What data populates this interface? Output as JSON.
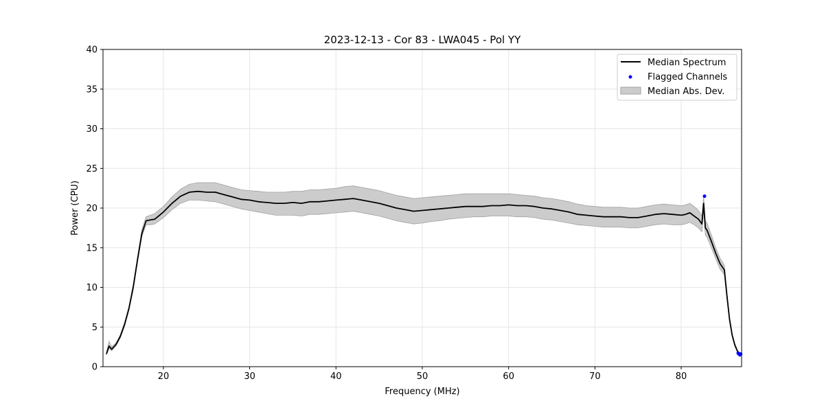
{
  "chart_data": {
    "type": "line",
    "title": "2023-12-13 - Cor 83 - LWA045 - Pol YY",
    "xlabel": "Frequency (MHz)",
    "ylabel": "Power (CPU)",
    "xlim": [
      13,
      87
    ],
    "ylim": [
      0,
      40
    ],
    "xticks": [
      20,
      30,
      40,
      50,
      60,
      70,
      80
    ],
    "yticks": [
      0,
      5,
      10,
      15,
      20,
      25,
      30,
      35,
      40
    ],
    "grid": true,
    "legend_position": "top-right",
    "series": [
      {
        "name": "Median Spectrum",
        "kind": "line",
        "color": "#000000",
        "x": [
          13.4,
          13.7,
          14.0,
          14.5,
          15.0,
          15.5,
          16.0,
          16.5,
          17.0,
          17.5,
          18.0,
          18.5,
          19.0,
          20.0,
          21.0,
          22.0,
          23.0,
          24.0,
          25.0,
          26.0,
          27.0,
          28.0,
          29.0,
          30.0,
          31.0,
          32.0,
          33.0,
          34.0,
          35.0,
          36.0,
          37.0,
          38.0,
          39.0,
          40.0,
          41.0,
          42.0,
          43.0,
          44.0,
          45.0,
          46.0,
          47.0,
          48.0,
          49.0,
          50.0,
          51.0,
          52.0,
          53.0,
          54.0,
          55.0,
          56.0,
          57.0,
          58.0,
          59.0,
          60.0,
          61.0,
          62.0,
          63.0,
          64.0,
          65.0,
          66.0,
          67.0,
          68.0,
          69.0,
          70.0,
          71.0,
          72.0,
          73.0,
          74.0,
          75.0,
          76.0,
          77.0,
          78.0,
          79.0,
          80.0,
          80.5,
          81.0,
          81.5,
          82.0,
          82.4,
          82.6,
          82.8,
          83.0,
          83.5,
          84.0,
          84.5,
          85.0,
          85.3,
          85.6,
          85.9,
          86.2,
          86.5,
          86.8
        ],
        "y": [
          1.6,
          2.6,
          2.2,
          2.8,
          3.8,
          5.3,
          7.3,
          10.0,
          13.5,
          16.8,
          18.4,
          18.5,
          18.6,
          19.5,
          20.6,
          21.5,
          22.0,
          22.1,
          22.0,
          22.0,
          21.7,
          21.4,
          21.1,
          21.0,
          20.8,
          20.7,
          20.6,
          20.6,
          20.7,
          20.6,
          20.8,
          20.8,
          20.9,
          21.0,
          21.1,
          21.2,
          21.0,
          20.8,
          20.6,
          20.3,
          20.0,
          19.8,
          19.6,
          19.7,
          19.8,
          19.9,
          20.0,
          20.1,
          20.2,
          20.2,
          20.2,
          20.3,
          20.3,
          20.4,
          20.3,
          20.3,
          20.2,
          20.0,
          19.9,
          19.7,
          19.5,
          19.2,
          19.1,
          19.0,
          18.9,
          18.9,
          18.9,
          18.8,
          18.8,
          19.0,
          19.2,
          19.3,
          19.2,
          19.1,
          19.2,
          19.4,
          19.0,
          18.6,
          18.0,
          20.6,
          17.5,
          17.2,
          15.8,
          14.3,
          13.0,
          12.2,
          9.0,
          6.0,
          4.0,
          2.8,
          2.0,
          1.6
        ]
      },
      {
        "name": "Flagged Channels",
        "kind": "scatter",
        "color": "#0000ff",
        "x": [
          82.7,
          86.6,
          86.7,
          86.8,
          86.9
        ],
        "y": [
          21.5,
          1.7,
          1.6,
          1.5,
          1.6
        ]
      },
      {
        "name": "Median Abs. Dev.",
        "kind": "band",
        "color": "#cccccc",
        "edge_color": "#a0a0a0",
        "x": [
          13.4,
          13.7,
          14.0,
          14.5,
          15.0,
          15.5,
          16.0,
          16.5,
          17.0,
          17.5,
          18.0,
          18.5,
          19.0,
          20.0,
          21.0,
          22.0,
          23.0,
          24.0,
          25.0,
          26.0,
          27.0,
          28.0,
          29.0,
          30.0,
          31.0,
          32.0,
          33.0,
          34.0,
          35.0,
          36.0,
          37.0,
          38.0,
          39.0,
          40.0,
          41.0,
          42.0,
          43.0,
          44.0,
          45.0,
          46.0,
          47.0,
          48.0,
          49.0,
          50.0,
          51.0,
          52.0,
          53.0,
          54.0,
          55.0,
          56.0,
          57.0,
          58.0,
          59.0,
          60.0,
          61.0,
          62.0,
          63.0,
          64.0,
          65.0,
          66.0,
          67.0,
          68.0,
          69.0,
          70.0,
          71.0,
          72.0,
          73.0,
          74.0,
          75.0,
          76.0,
          77.0,
          78.0,
          79.0,
          80.0,
          80.5,
          81.0,
          81.5,
          82.0,
          82.4,
          82.6,
          82.8,
          83.0,
          83.5,
          84.0,
          84.5,
          85.0,
          85.3,
          85.6,
          85.9,
          86.2,
          86.5,
          86.8
        ],
        "lower": [
          1.5,
          2.3,
          2.0,
          2.6,
          3.6,
          5.1,
          7.1,
          9.7,
          13.2,
          16.4,
          17.9,
          17.9,
          18.0,
          18.8,
          19.8,
          20.6,
          21.0,
          21.0,
          20.9,
          20.8,
          20.5,
          20.2,
          19.9,
          19.7,
          19.5,
          19.3,
          19.1,
          19.1,
          19.1,
          19.0,
          19.2,
          19.2,
          19.3,
          19.4,
          19.5,
          19.6,
          19.4,
          19.2,
          19.0,
          18.7,
          18.4,
          18.2,
          18.0,
          18.1,
          18.3,
          18.4,
          18.6,
          18.7,
          18.8,
          18.9,
          18.9,
          19.0,
          19.0,
          19.0,
          18.9,
          18.9,
          18.8,
          18.6,
          18.5,
          18.3,
          18.1,
          17.9,
          17.8,
          17.7,
          17.6,
          17.6,
          17.6,
          17.5,
          17.5,
          17.7,
          17.9,
          18.0,
          17.9,
          17.9,
          18.0,
          18.2,
          17.9,
          17.5,
          17.0,
          19.8,
          16.6,
          16.3,
          15.0,
          13.6,
          12.3,
          11.6,
          8.6,
          5.7,
          3.8,
          2.6,
          1.9,
          1.5
        ],
        "upper": [
          1.8,
          3.2,
          2.5,
          3.0,
          4.0,
          5.6,
          7.6,
          10.4,
          13.9,
          17.3,
          18.9,
          19.1,
          19.3,
          20.2,
          21.4,
          22.4,
          23.0,
          23.2,
          23.2,
          23.2,
          22.9,
          22.6,
          22.3,
          22.2,
          22.1,
          22.0,
          22.0,
          22.0,
          22.1,
          22.1,
          22.3,
          22.3,
          22.4,
          22.5,
          22.7,
          22.8,
          22.6,
          22.4,
          22.2,
          21.9,
          21.6,
          21.4,
          21.2,
          21.3,
          21.4,
          21.5,
          21.6,
          21.7,
          21.8,
          21.8,
          21.8,
          21.8,
          21.8,
          21.8,
          21.7,
          21.6,
          21.5,
          21.3,
          21.2,
          21.0,
          20.8,
          20.5,
          20.3,
          20.2,
          20.1,
          20.1,
          20.1,
          20.0,
          20.0,
          20.2,
          20.4,
          20.5,
          20.4,
          20.3,
          20.4,
          20.6,
          20.2,
          19.7,
          19.0,
          21.4,
          18.4,
          18.1,
          16.6,
          15.0,
          13.7,
          12.8,
          9.4,
          6.3,
          4.2,
          3.0,
          2.1,
          1.7
        ]
      }
    ]
  }
}
